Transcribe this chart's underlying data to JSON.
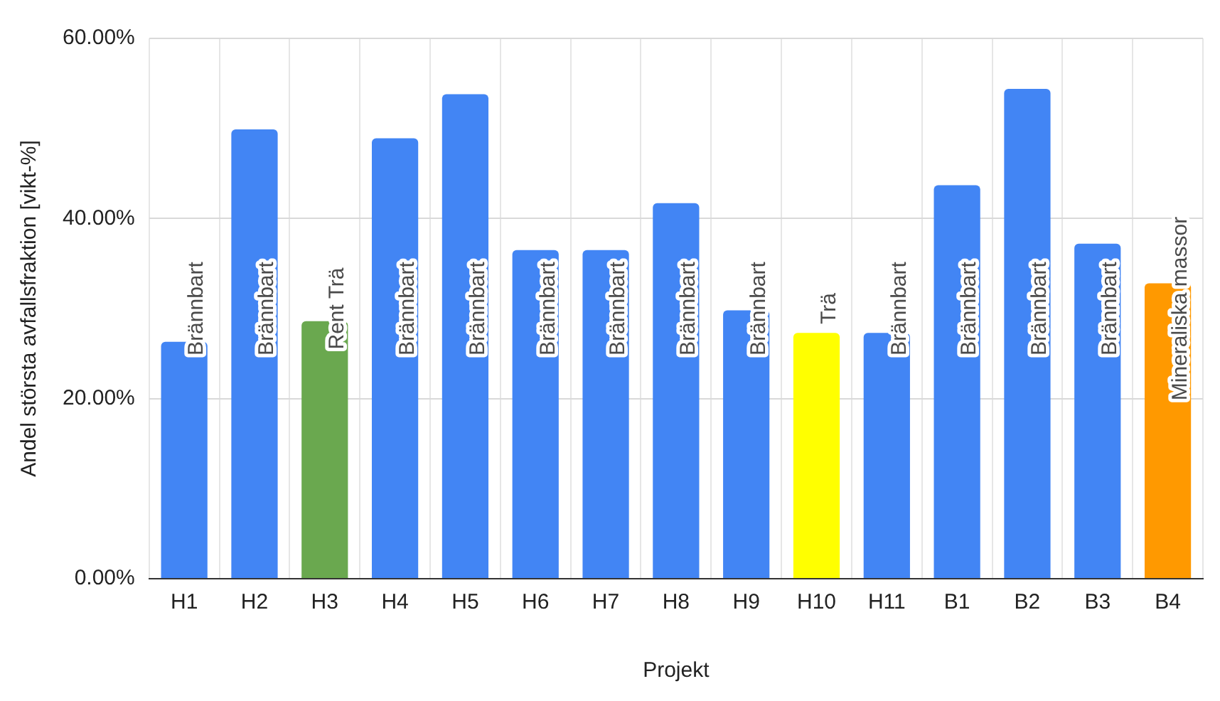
{
  "chart_data": {
    "type": "bar",
    "xlabel": "Projekt",
    "ylabel": "Andel största avfallsfraktion [vikt-%]",
    "categories": [
      "H1",
      "H2",
      "H3",
      "H4",
      "H5",
      "H6",
      "H7",
      "H8",
      "H9",
      "H10",
      "H11",
      "B1",
      "B2",
      "B3",
      "B4"
    ],
    "values": [
      26.3,
      49.9,
      28.6,
      48.9,
      53.8,
      36.5,
      36.5,
      41.7,
      29.8,
      27.3,
      27.3,
      43.7,
      54.4,
      37.2,
      32.8
    ],
    "colors": [
      "#4285f4",
      "#4285f4",
      "#6aa84f",
      "#4285f4",
      "#4285f4",
      "#4285f4",
      "#4285f4",
      "#4285f4",
      "#4285f4",
      "#ffff00",
      "#4285f4",
      "#4285f4",
      "#4285f4",
      "#4285f4",
      "#ff9900"
    ],
    "value_labels": [
      "Brännbart",
      "Brännbart",
      "Rent Trä",
      "Brännbart",
      "Brännbart",
      "Brännbart",
      "Brännbart",
      "Brännbart",
      "Brännbart",
      "Trä",
      "Brännbart",
      "Brännbart",
      "Brännbart",
      "Brännbart",
      "Mineraliska massor"
    ],
    "ylim": [
      0,
      60
    ],
    "yticks": [
      {
        "value": 0,
        "label": "0.00%"
      },
      {
        "value": 20,
        "label": "20.00%"
      },
      {
        "value": 40,
        "label": "40.00%"
      },
      {
        "value": 60,
        "label": "60.00%"
      }
    ],
    "grid": true
  }
}
